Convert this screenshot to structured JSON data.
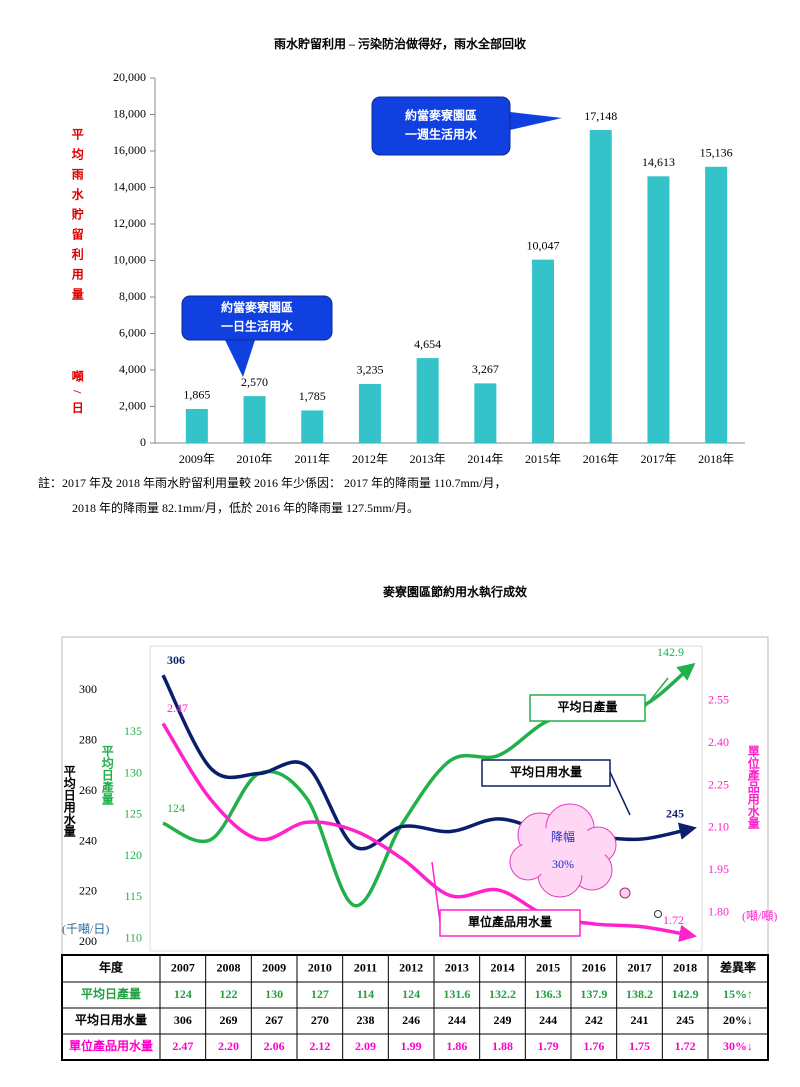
{
  "chart_data": [
    {
      "type": "bar",
      "title": "雨水貯留利用 – 污染防治做得好，雨水全部回收",
      "y_label": "平均雨水貯留利用量",
      "y_unit": "噸/日",
      "categories": [
        "2009年",
        "2010年",
        "2011年",
        "2012年",
        "2013年",
        "2014年",
        "2015年",
        "2016年",
        "2017年",
        "2018年"
      ],
      "values": [
        1865,
        2570,
        1785,
        3235,
        4654,
        3267,
        10047,
        17148,
        14613,
        15136
      ],
      "value_labels": [
        "1,865",
        "2,570",
        "1,785",
        "3,235",
        "4,654",
        "3,267",
        "10,047",
        "17,148",
        "14,613",
        "15,136"
      ],
      "color": "#33c3c8",
      "ylim": [
        0,
        20000
      ],
      "yticks": [
        0,
        {
          "value": 2000,
          "label": "2,000"
        },
        {
          "value": 4000,
          "label": "4,000"
        },
        {
          "value": 6000,
          "label": "6,000"
        },
        {
          "value": 8000,
          "label": "8,000"
        },
        {
          "value": 10000,
          "label": "10,000"
        },
        {
          "value": 12000,
          "label": "12,000"
        },
        {
          "value": 14000,
          "label": "14,000"
        },
        {
          "value": 16000,
          "label": "16,000"
        },
        {
          "value": 18000,
          "label": "18,000"
        },
        {
          "value": 20000,
          "label": "20,000"
        }
      ],
      "annotations": [
        {
          "text": [
            "約當麥寮園區",
            "一日生活用水"
          ]
        },
        {
          "text": [
            "約當麥寮園區",
            "一週生活用水"
          ]
        }
      ]
    },
    {
      "type": "line",
      "title": "麥寮園區節約用水執行成效",
      "categories": [
        "2007",
        "2008",
        "2009",
        "2010",
        "2011",
        "2012",
        "2013",
        "2014",
        "2015",
        "2016",
        "2017",
        "2018"
      ],
      "series": [
        {
          "name": "平均日產量",
          "color": "#22b04a",
          "values": [
            124,
            122,
            130,
            127,
            114,
            124,
            131.6,
            132.2,
            136.3,
            137.9,
            138.2,
            142.9
          ],
          "value_labels": [
            "124",
            null,
            null,
            null,
            null,
            null,
            null,
            null,
            null,
            null,
            null,
            "142.9"
          ],
          "axis_label": "平均日產量",
          "ylim": [
            108,
            145
          ],
          "yticks": [
            110,
            115,
            120,
            125,
            130,
            135
          ]
        },
        {
          "name": "平均日用水量",
          "color": "#0a1f6b",
          "values": [
            306,
            269,
            267,
            270,
            238,
            246,
            244,
            249,
            244,
            242,
            241,
            245
          ],
          "value_labels": [
            "306",
            null,
            null,
            null,
            null,
            null,
            null,
            null,
            null,
            null,
            null,
            "245"
          ],
          "axis_label": "平均日用水量",
          "unit": "(千噸/日)",
          "ylim": [
            195,
            316
          ],
          "yticks": [
            200,
            220,
            240,
            260,
            280,
            300
          ]
        },
        {
          "name": "單位產品用水量",
          "color": "#ff22cc",
          "values": [
            2.47,
            2.2,
            2.06,
            2.12,
            2.09,
            1.99,
            1.86,
            1.88,
            1.79,
            1.76,
            1.75,
            1.72
          ],
          "value_labels": [
            "2.47",
            null,
            null,
            null,
            null,
            null,
            null,
            null,
            null,
            null,
            null,
            "1.72"
          ],
          "axis_label": "單位產品用水量",
          "unit": "(噸/噸)",
          "ylim": [
            1.65,
            2.73
          ],
          "yticks": [
            {
              "value": 1.8,
              "label": "1.80"
            },
            {
              "value": 1.95,
              "label": "1.95"
            },
            {
              "value": 2.1,
              "label": "2.10"
            },
            {
              "value": 2.25,
              "label": "2.25"
            },
            {
              "value": 2.4,
              "label": "2.40"
            },
            {
              "value": 2.55,
              "label": "2.55"
            }
          ]
        }
      ],
      "callout": [
        "降幅",
        "30%"
      ]
    }
  ],
  "note": [
    "註：2017 年及 2018 年雨水貯留利用量較 2016 年少係因： 2017 年的降雨量 110.7mm/月，",
    "2018 年的降雨量 82.1mm/月，低於 2016 年的降雨量 127.5mm/月。"
  ],
  "table": {
    "corner": "年度",
    "diff_header": "差異率",
    "rows": [
      {
        "color": "#22a040",
        "values": [
          "124",
          "122",
          "130",
          "127",
          "114",
          "124",
          "131.6",
          "132.2",
          "136.3",
          "137.9",
          "138.2",
          "142.9"
        ],
        "diff": "15%↑"
      },
      {
        "color": "#000000",
        "values": [
          "306",
          "269",
          "267",
          "270",
          "238",
          "246",
          "244",
          "249",
          "244",
          "242",
          "241",
          "245"
        ],
        "diff": "20%↓"
      },
      {
        "color": "#ff00cc",
        "values": [
          "2.47",
          "2.20",
          "2.06",
          "2.12",
          "2.09",
          "1.99",
          "1.86",
          "1.88",
          "1.79",
          "1.76",
          "1.75",
          "1.72"
        ],
        "diff": "30%↓"
      }
    ]
  }
}
